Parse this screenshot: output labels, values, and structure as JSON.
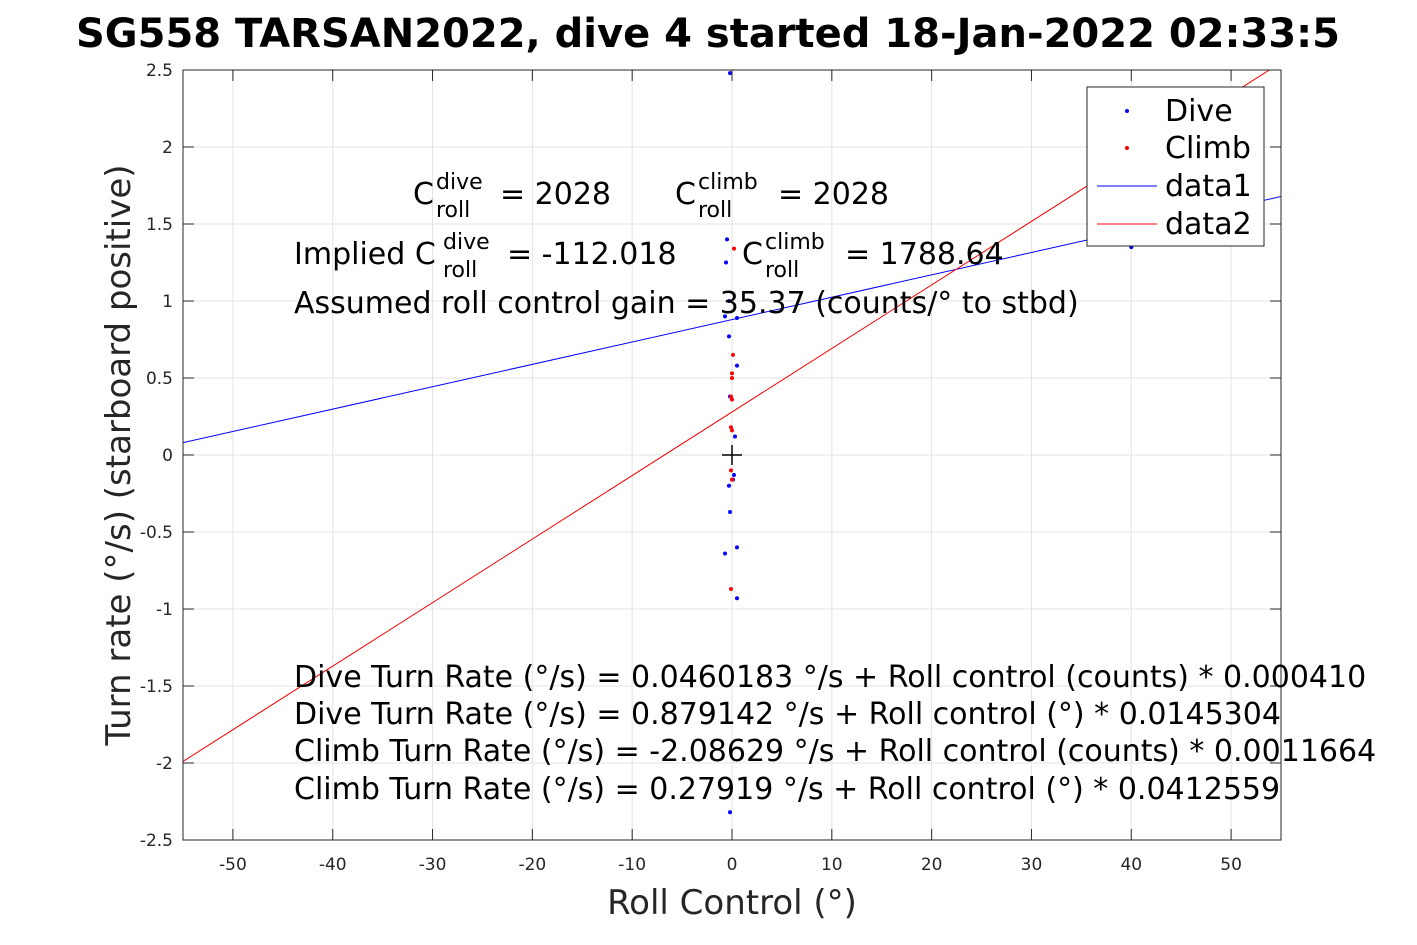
{
  "title": "SG558 TARSAN2022, dive 4 started 18-Jan-2022 02:33:5",
  "chart_data": {
    "type": "scatter",
    "xlabel": "Roll Control (°)",
    "ylabel": "Turn rate (°/s) (starboard positive)",
    "xlim": [
      -55,
      55
    ],
    "ylim": [
      -2.5,
      2.5
    ],
    "xticks": [
      -50,
      -40,
      -30,
      -20,
      -10,
      0,
      10,
      20,
      30,
      40,
      50
    ],
    "yticks": [
      -2.5,
      -2,
      -1.5,
      -1,
      -0.5,
      0,
      0.5,
      1,
      1.5,
      2,
      2.5
    ],
    "xtick_labels": [
      "-50",
      "-40",
      "-30",
      "-20",
      "-10",
      "0",
      "10",
      "20",
      "30",
      "40",
      "50"
    ],
    "ytick_labels": [
      "-2.5",
      "-2",
      "-1.5",
      "-1",
      "-0.5",
      "0",
      "0.5",
      "1",
      "1.5",
      "2",
      "2.5"
    ],
    "grid": true,
    "legend_position": "top-right",
    "series": [
      {
        "name": "Dive",
        "kind": "points",
        "color": "#0000ff",
        "points": [
          [
            -0.2,
            2.48
          ],
          [
            -0.5,
            1.4
          ],
          [
            -0.6,
            1.25
          ],
          [
            -0.3,
            1.0
          ],
          [
            -0.7,
            0.9
          ],
          [
            0.5,
            0.89
          ],
          [
            -0.3,
            0.77
          ],
          [
            0.5,
            0.58
          ],
          [
            -0.2,
            0.38
          ],
          [
            0.3,
            0.12
          ],
          [
            0.2,
            -0.13
          ],
          [
            -0.3,
            -0.2
          ],
          [
            0.1,
            -0.16
          ],
          [
            -0.2,
            -0.37
          ],
          [
            -0.7,
            -0.64
          ],
          [
            0.5,
            -0.6
          ],
          [
            0.5,
            -0.93
          ],
          [
            -0.2,
            -2.32
          ],
          [
            40.0,
            1.35
          ]
        ]
      },
      {
        "name": "Climb",
        "kind": "points",
        "color": "#ff0000",
        "points": [
          [
            0.2,
            1.34
          ],
          [
            0.1,
            0.65
          ],
          [
            0.0,
            0.53
          ],
          [
            0.0,
            0.5
          ],
          [
            -0.1,
            0.38
          ],
          [
            0.0,
            0.36
          ],
          [
            -0.1,
            0.18
          ],
          [
            0.0,
            0.16
          ],
          [
            -0.1,
            -0.1
          ],
          [
            0.0,
            -0.16
          ],
          [
            -0.1,
            -0.87
          ]
        ]
      },
      {
        "name": "data1",
        "kind": "line",
        "color": "#0000ff",
        "x": [
          -55,
          55
        ],
        "y": [
          0.08,
          1.6783
        ]
      },
      {
        "name": "data2",
        "kind": "line",
        "color": "#ff0000",
        "x": [
          -55,
          55
        ],
        "y": [
          -1.9899,
          2.5483
        ]
      }
    ],
    "marker_plus": [
      0,
      0
    ]
  },
  "annotations": {
    "c_dive_label": "C",
    "c_dive_sup": "dive",
    "c_dive_sub": "roll",
    "c_dive_value": "= 2028",
    "c_climb_label": "C",
    "c_climb_sup": "climb",
    "c_climb_sub": "roll",
    "c_climb_value": "= 2028",
    "implied_prefix": "Implied C",
    "implied_dive_sup": "dive",
    "implied_dive_sub": "roll",
    "implied_dive_value": "= -112.018",
    "implied_climb_label": "C",
    "implied_climb_sup": "climb",
    "implied_climb_sub": "roll",
    "implied_climb_value": "= 1788.64",
    "gain": "Assumed roll control gain = 35.37 (counts/° to stbd)",
    "eq1": "Dive Turn Rate (°/s) = 0.0460183 °/s + Roll control (counts) * 0.000410",
    "eq2": "Dive Turn Rate (°/s) = 0.879142 °/s + Roll control (°) * 0.0145304",
    "eq3": "Climb Turn Rate (°/s) = -2.08629 °/s + Roll control (counts) * 0.0011664",
    "eq4": "Climb Turn Rate (°/s) = 0.27919 °/s + Roll control (°) * 0.0412559"
  },
  "legend": {
    "dive": "Dive",
    "climb": "Climb",
    "data1": "data1",
    "data2": "data2"
  }
}
